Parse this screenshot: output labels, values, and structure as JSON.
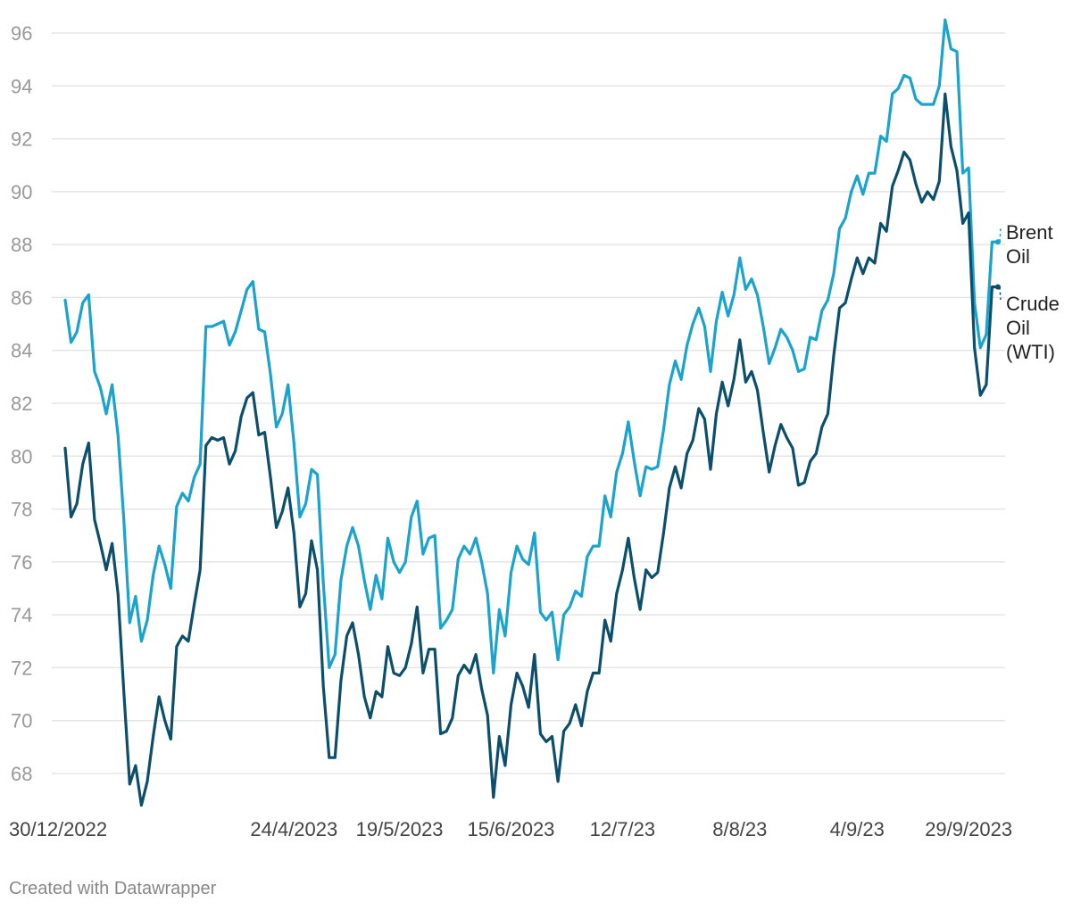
{
  "chart_data": {
    "type": "line",
    "ylim": [
      67,
      96.5
    ],
    "y_ticks": [
      68,
      70,
      72,
      74,
      76,
      78,
      80,
      82,
      84,
      86,
      88,
      90,
      92,
      94,
      96
    ],
    "x_tick_labels": [
      "30/12/2022",
      "24/4/2023",
      "19/5/2023",
      "15/6/2023",
      "12/7/23",
      "8/8/23",
      "4/9/23",
      "29/9/2023"
    ],
    "x_tick_index": [
      0,
      39,
      57,
      76,
      95,
      115,
      135,
      154
    ],
    "grid": true,
    "legend": "inline-right",
    "series": [
      {
        "name": "Brent Oil",
        "label_lines": [
          "Brent",
          "Oil"
        ],
        "color": "#1aa3cc",
        "values": [
          85.9,
          84.3,
          84.7,
          85.8,
          86.1,
          83.2,
          82.6,
          81.6,
          82.7,
          80.8,
          77.6,
          73.7,
          74.7,
          73.0,
          73.8,
          75.5,
          76.6,
          75.9,
          75.0,
          78.1,
          78.6,
          78.3,
          79.2,
          79.7,
          84.9,
          84.9,
          85.0,
          85.1,
          84.2,
          84.7,
          85.5,
          86.3,
          86.6,
          84.8,
          84.7,
          83.1,
          81.1,
          81.6,
          82.7,
          80.5,
          77.7,
          78.2,
          79.5,
          79.3,
          75.2,
          72.0,
          72.5,
          75.3,
          76.6,
          77.3,
          76.6,
          75.3,
          74.2,
          75.5,
          74.6,
          76.9,
          76.0,
          75.6,
          76.0,
          77.7,
          78.3,
          76.3,
          76.9,
          77.0,
          73.5,
          73.8,
          74.2,
          76.1,
          76.6,
          76.3,
          76.9,
          76.0,
          74.8,
          71.8,
          74.2,
          73.2,
          75.6,
          76.6,
          76.1,
          75.9,
          77.1,
          74.1,
          73.8,
          74.1,
          72.3,
          74.0,
          74.3,
          74.9,
          74.7,
          76.2,
          76.6,
          76.6,
          78.5,
          77.7,
          79.4,
          80.1,
          81.3,
          79.8,
          78.5,
          79.6,
          79.5,
          79.6,
          81.0,
          82.7,
          83.6,
          82.9,
          84.2,
          85.0,
          85.6,
          84.9,
          83.2,
          85.1,
          86.2,
          85.3,
          86.1,
          87.5,
          86.3,
          86.7,
          86.1,
          84.9,
          83.5,
          84.1,
          84.8,
          84.5,
          84.0,
          83.2,
          83.3,
          84.5,
          84.4,
          85.5,
          85.9,
          86.9,
          88.6,
          89.0,
          90.0,
          90.6,
          89.9,
          90.7,
          90.7,
          92.1,
          91.9,
          93.7,
          93.9,
          94.4,
          94.3,
          93.5,
          93.3,
          93.3,
          93.3,
          94.0,
          96.5,
          95.4,
          95.3,
          90.7,
          90.9,
          85.8,
          84.1,
          84.6,
          88.1,
          88.1
        ]
      },
      {
        "name": "Crude Oil (WTI)",
        "label_lines": [
          "Crude",
          "Oil",
          "(WTI)"
        ],
        "color": "#0b4f6c",
        "values": [
          80.3,
          77.7,
          78.2,
          79.7,
          80.5,
          77.6,
          76.7,
          75.7,
          76.7,
          74.8,
          71.1,
          67.6,
          68.3,
          66.8,
          67.7,
          69.4,
          70.9,
          70.0,
          69.3,
          72.8,
          73.2,
          73.0,
          74.4,
          75.7,
          80.4,
          80.7,
          80.6,
          80.7,
          79.7,
          80.2,
          81.5,
          82.2,
          82.4,
          80.8,
          80.9,
          79.2,
          77.3,
          77.9,
          78.8,
          77.1,
          74.3,
          74.8,
          76.8,
          75.7,
          71.3,
          68.6,
          68.6,
          71.5,
          73.2,
          73.7,
          72.5,
          70.9,
          70.1,
          71.1,
          70.9,
          72.8,
          71.8,
          71.7,
          72.0,
          72.9,
          74.3,
          71.8,
          72.7,
          72.7,
          69.5,
          69.6,
          70.1,
          71.7,
          72.1,
          71.8,
          72.5,
          71.2,
          70.2,
          67.1,
          69.4,
          68.3,
          70.6,
          71.8,
          71.3,
          70.5,
          72.5,
          69.5,
          69.2,
          69.4,
          67.7,
          69.6,
          69.9,
          70.6,
          69.8,
          71.1,
          71.8,
          71.8,
          73.8,
          73.0,
          74.8,
          75.7,
          76.9,
          75.4,
          74.2,
          75.7,
          75.4,
          75.6,
          77.1,
          78.8,
          79.6,
          78.8,
          80.1,
          80.6,
          81.8,
          81.4,
          79.5,
          81.6,
          82.8,
          81.9,
          82.9,
          84.4,
          82.8,
          83.2,
          82.5,
          80.9,
          79.4,
          80.4,
          81.2,
          80.7,
          80.3,
          78.9,
          79.0,
          79.8,
          80.1,
          81.1,
          81.6,
          83.8,
          85.6,
          85.8,
          86.7,
          87.5,
          86.9,
          87.5,
          87.3,
          88.8,
          88.5,
          90.2,
          90.8,
          91.5,
          91.2,
          90.3,
          89.6,
          90.0,
          89.7,
          90.4,
          93.7,
          91.7,
          90.8,
          88.8,
          89.2,
          84.1,
          82.3,
          82.7,
          86.4,
          86.4
        ]
      }
    ]
  },
  "footer": {
    "credit": "Created with Datawrapper"
  }
}
